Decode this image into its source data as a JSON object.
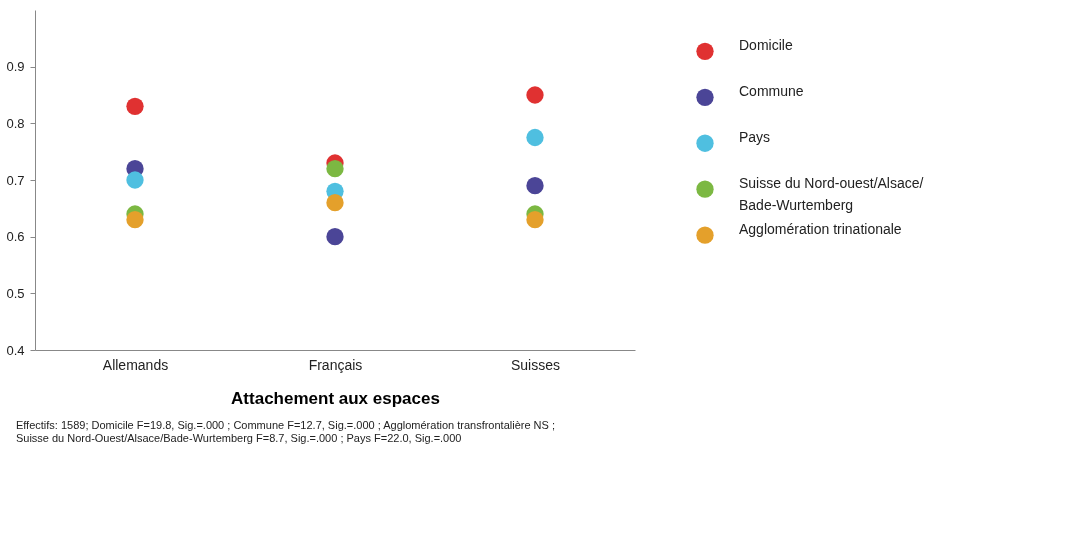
{
  "chart_data": {
    "type": "scatter",
    "xlabel": "Attachement aux espaces",
    "categories": [
      "Allemands",
      "Français",
      "Suisses"
    ],
    "series": [
      {
        "name": "Domicile",
        "color": "#e03131",
        "values": [
          0.83,
          0.73,
          0.85
        ]
      },
      {
        "name": "Commune",
        "color": "#4b4597",
        "values": [
          0.72,
          0.6,
          0.69
        ]
      },
      {
        "name": "Pays",
        "color": "#4fbfe0",
        "values": [
          0.7,
          0.68,
          0.775
        ]
      },
      {
        "name": "Suisse du Nord-ouest/Alsace/Bade-Wurtemberg",
        "color": "#7cb842",
        "values": [
          0.64,
          0.72,
          0.64
        ]
      },
      {
        "name": "Agglomération trinationale",
        "color": "#e4a02b",
        "values": [
          0.63,
          0.66,
          0.63
        ]
      }
    ],
    "ylim": [
      0.4,
      1.0
    ],
    "yticks": [
      0.4,
      0.5,
      0.6,
      0.7,
      0.8,
      0.9
    ],
    "grid": false,
    "legend": "right",
    "marker": "circle",
    "annotations": [
      "Effectifs: 1589; Domicile F=19.8, Sig.=.000 ; Commune F=12.7, Sig.=.000 ; Agglomération transfrontalière NS ;",
      "Suisse du Nord-Ouest/Alsace/Bade-Wurtemberg  F=8.7, Sig.=.000 ; Pays F=22.0, Sig.=.000"
    ]
  }
}
